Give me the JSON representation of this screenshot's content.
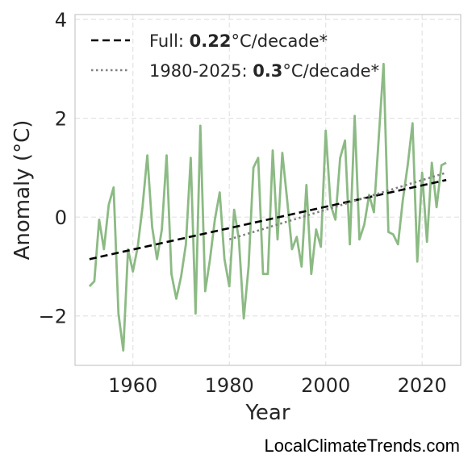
{
  "chart_data": {
    "type": "line",
    "xlabel": "Year",
    "ylabel": "Anomaly (°C)",
    "xlim": [
      1948,
      2028
    ],
    "ylim": [
      -3,
      4.1
    ],
    "xticks": [
      1960,
      1980,
      2000,
      2020
    ],
    "xtick_labels": [
      "1960",
      "1980",
      "2000",
      "2020"
    ],
    "yticks": [
      -2,
      0,
      2,
      4
    ],
    "ytick_labels": [
      "−2",
      "0",
      "2",
      "4"
    ],
    "grid": true,
    "legend_position": "top-left",
    "series": [
      {
        "x": [
          1951,
          1952,
          1953,
          1954,
          1955,
          1956,
          1957,
          1958,
          1959,
          1960,
          1961,
          1962,
          1963,
          1964,
          1965,
          1966,
          1967,
          1968,
          1969,
          1970,
          1971,
          1972,
          1973,
          1974,
          1975,
          1976,
          1977,
          1978,
          1979,
          1980,
          1981,
          1982,
          1983,
          1984,
          1985,
          1986,
          1987,
          1988,
          1989,
          1990,
          1991,
          1992,
          1993,
          1994,
          1995,
          1996,
          1997,
          1998,
          1999,
          2000,
          2001,
          2002,
          2003,
          2004,
          2005,
          2006,
          2007,
          2008,
          2009,
          2010,
          2011,
          2012,
          2013,
          2014,
          2015,
          2016,
          2017,
          2018,
          2019,
          2020,
          2021,
          2022,
          2023,
          2024,
          2025
        ],
        "y": [
          -1.4,
          -1.3,
          -0.05,
          -0.65,
          0.25,
          0.6,
          -1.95,
          -2.7,
          -0.65,
          -1.1,
          -0.6,
          0.2,
          1.25,
          -0.2,
          -0.85,
          -0.25,
          1.25,
          -1.15,
          -1.65,
          -1.2,
          -0.55,
          1.2,
          -1.95,
          1.85,
          -1.5,
          -0.85,
          -0.05,
          0.5,
          -0.85,
          -1.4,
          0.15,
          -0.45,
          -2.05,
          -1.0,
          1.0,
          1.2,
          -1.15,
          -1.15,
          1.35,
          -0.45,
          1.3,
          0.35,
          -0.65,
          -0.4,
          -1.0,
          0.65,
          -1.15,
          -0.25,
          -0.6,
          1.75,
          0.25,
          -0.05,
          1.2,
          1.55,
          -0.55,
          2.05,
          -0.45,
          -0.15,
          0.45,
          0.1,
          1.6,
          3.1,
          -0.3,
          -0.35,
          -0.55,
          0.35,
          1.05,
          1.9,
          -0.9,
          0.9,
          -0.5,
          1.1,
          0.2,
          1.05,
          1.1
        ],
        "color": "#8cba84"
      },
      {
        "name": "Full: 0.22°C/decade*",
        "x": [
          1951,
          2025
        ],
        "y": [
          -0.85,
          0.75
        ],
        "color": "#000000",
        "style": "dashed"
      },
      {
        "name": "1980-2025: 0.3°C/decade*",
        "x": [
          1980,
          2025
        ],
        "y": [
          -0.45,
          0.9
        ],
        "color": "#808080",
        "style": "dotted"
      }
    ]
  },
  "legend": {
    "full_prefix": "Full: ",
    "full_rate": "0.22",
    "full_suffix": "°C/decade*",
    "recent_prefix": "1980-2025: ",
    "recent_rate": "0.3",
    "recent_suffix": "°C/decade*"
  },
  "watermark": "LocalClimateTrends.com"
}
